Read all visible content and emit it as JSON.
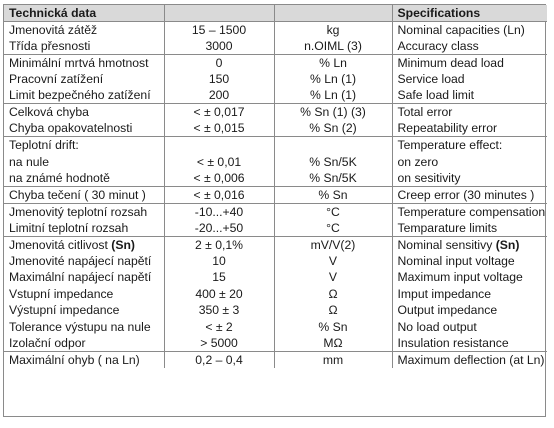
{
  "header": {
    "cz": "Technická data",
    "en": "Specifications"
  },
  "rows": [
    {
      "cz": "Jmenovitá zátěž",
      "val": "15 – 1500",
      "unit": "kg",
      "en": "Nominal capacities (Ln)"
    },
    {
      "cz": "Třída přesnosti",
      "val": "3000",
      "unit": "n.OIML (3)",
      "en": "Accuracy class"
    },
    {
      "cz": "Minimální mrtvá hmotnost",
      "val": "0",
      "unit": "% Ln",
      "en": "Minimum dead load"
    },
    {
      "cz": "Pracovní zatížení",
      "val": "150",
      "unit": "% Ln (1)",
      "en": "Service load"
    },
    {
      "cz": "Limit bezpečného zatížení",
      "val": "200",
      "unit": "% Ln (1)",
      "en": "Safe load limit"
    },
    {
      "cz": "Celková chyba",
      "val": "< ± 0,017",
      "unit": "% Sn (1) (3)",
      "en": "Total error"
    },
    {
      "cz": "Chyba opakovatelnosti",
      "val": "< ± 0,015",
      "unit": "% Sn (2)",
      "en": "Repeatability error"
    },
    {
      "cz": "Teplotní drift:",
      "val": "",
      "unit": "",
      "en": "Temperature effect:"
    },
    {
      "cz": "na nule",
      "val": "< ± 0,01",
      "unit": "% Sn/5K",
      "en": "on zero"
    },
    {
      "cz": "na známé hodnotě",
      "val": "< ± 0,006",
      "unit": "% Sn/5K",
      "en": "on sesitivity"
    },
    {
      "cz": "Chyba tečení ( 30 minut )",
      "val": "< ± 0,016",
      "unit": "% Sn",
      "en": "Creep error (30 minutes )"
    },
    {
      "cz": "Jmenovitý teplotní rozsah",
      "val": "-10...+40",
      "unit": "°C",
      "en": "Temperature compensation"
    },
    {
      "cz": "Limitní teplotní rozsah",
      "val": "-20...+50",
      "unit": "°C",
      "en": "Temparature limits"
    },
    {
      "cz_pre": "Jmenovitá citlivost ",
      "cz_bold": "(Sn)",
      "val": "2 ± 0,1%",
      "unit": "mV/V(2)",
      "en_pre": "Nominal sensitivy ",
      "en_bold": "(Sn)"
    },
    {
      "cz": "Jmenovité napájecí napětí",
      "val": "10",
      "unit": "V",
      "en": "Nominal input voltage"
    },
    {
      "cz": "Maximální napájecí napětí",
      "val": "15",
      "unit": "V",
      "en": "Maximum input voltage"
    },
    {
      "cz": "Vstupní impedance",
      "val": "400 ± 20",
      "unit": "Ω",
      "en": "Imput impedance"
    },
    {
      "cz": "Výstupní impedance",
      "val": "350 ± 3",
      "unit": "Ω",
      "en": "Output impedance"
    },
    {
      "cz": "Tolerance výstupu na nule",
      "val": "< ± 2",
      "unit": "% Sn",
      "en": "No load output"
    },
    {
      "cz": "Izolační odpor",
      "val": "> 5000",
      "unit": "MΩ",
      "en": "Insulation resistance"
    },
    {
      "cz": "Maximální ohyb ( na Ln)",
      "val": "0,2 – 0,4",
      "unit": "mm",
      "en": "Maximum deflection (at Ln)"
    }
  ]
}
